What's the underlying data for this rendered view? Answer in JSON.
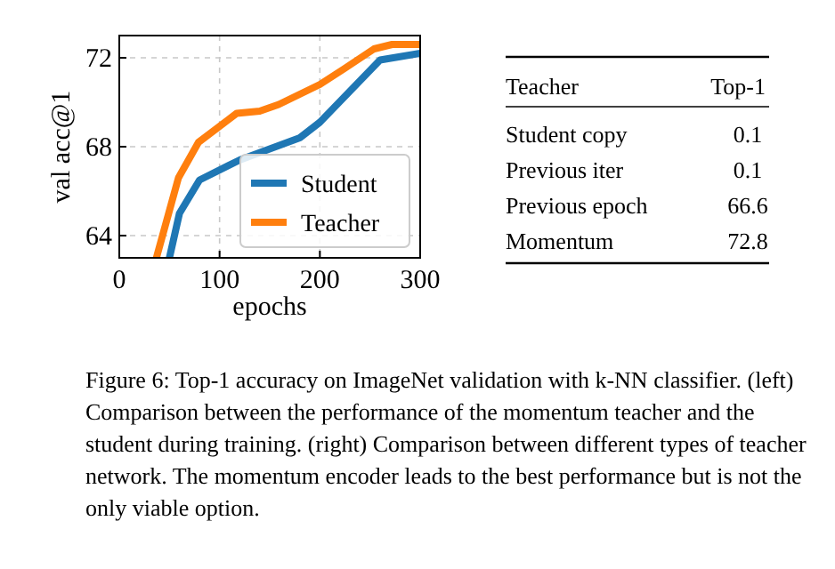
{
  "chart_data": [
    {
      "type": "line",
      "xlabel": "epochs",
      "ylabel": "val acc@1",
      "xlim": [
        0,
        300
      ],
      "xticks": [
        0,
        100,
        200,
        300
      ],
      "ylim": [
        63,
        73
      ],
      "yticks": [
        64,
        68,
        72
      ],
      "grid": true,
      "legend": "bottom right",
      "line_style": "solid",
      "marker": "none",
      "series": [
        {
          "name": "Student",
          "color": "#1f77b4",
          "x": [
            50,
            60,
            80,
            120,
            180,
            200,
            260,
            300
          ],
          "values": [
            63,
            65,
            66.5,
            67.4,
            68.4,
            69.1,
            71.9,
            72.2
          ]
        },
        {
          "name": "Teacher",
          "color": "#ff7f0e",
          "x": [
            37,
            59,
            79,
            117,
            140,
            159,
            200,
            224,
            254,
            272,
            300
          ],
          "values": [
            63,
            66.6,
            68.2,
            69.5,
            69.6,
            69.9,
            70.8,
            71.5,
            72.4,
            72.6,
            72.6
          ]
        }
      ],
      "annotations": [
        "Figure 6: Top-1 accuracy on ImageNet validation with k-NN classifier. (left) Comparison between the performance of the momentum teacher and the student during training. (right) Comparison between different types of teacher network. The momentum encoder leads to the best performance but is not the only viable option."
      ]
    },
    {
      "type": "other",
      "xlabel": "Teacher",
      "ylabel": "Top-1",
      "categories": [
        "Student copy",
        "Previous iter",
        "Previous epoch",
        "Momentum"
      ],
      "values": [
        0.1,
        0.1,
        66.6,
        72.8
      ],
      "data_labels": true
    }
  ]
}
